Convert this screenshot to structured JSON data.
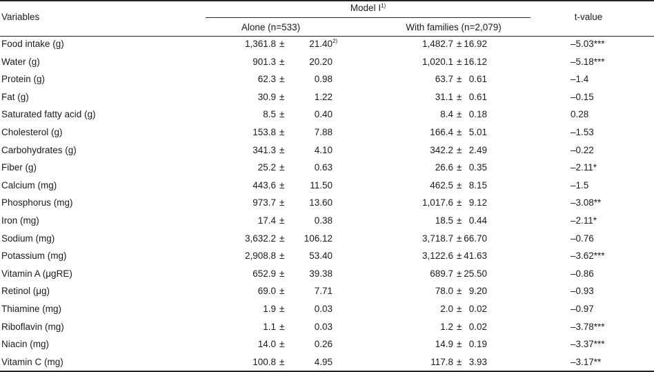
{
  "header": {
    "variables": "Variables",
    "model": "Model I",
    "model_note": "1)",
    "alone": "Alone (n=533)",
    "with_families": "With families (n=2,079)",
    "t_value": "t-value",
    "pm": "±",
    "se_note": "2)"
  },
  "rows": [
    {
      "variable": "Food intake (g)",
      "alone_mean": "1,361.8",
      "alone_se": "21.40",
      "with_mean": "1,482.7",
      "with_se": "16.92",
      "t": "–5.03***"
    },
    {
      "variable": "Water (g)",
      "alone_mean": "901.3",
      "alone_se": "20.20",
      "with_mean": "1,020.1",
      "with_se": "16.12",
      "t": "–5.18***"
    },
    {
      "variable": "Protein (g)",
      "alone_mean": "62.3",
      "alone_se": "0.98",
      "with_mean": "63.7",
      "with_se": "0.61",
      "t": "–1.4"
    },
    {
      "variable": "Fat (g)",
      "alone_mean": "30.9",
      "alone_se": "1.22",
      "with_mean": "31.1",
      "with_se": "0.61",
      "t": "–0.15"
    },
    {
      "variable": "Saturated fatty acid (g)",
      "alone_mean": "8.5",
      "alone_se": "0.40",
      "with_mean": "8.4",
      "with_se": "0.18",
      "t": "0.28"
    },
    {
      "variable": "Cholesterol (g)",
      "alone_mean": "153.8",
      "alone_se": "7.88",
      "with_mean": "166.4",
      "with_se": "5.01",
      "t": "–1.53"
    },
    {
      "variable": "Carbohydrates (g)",
      "alone_mean": "341.3",
      "alone_se": "4.10",
      "with_mean": "342.2",
      "with_se": "2.49",
      "t": "–0.22"
    },
    {
      "variable": "Fiber (g)",
      "alone_mean": "25.2",
      "alone_se": "0.63",
      "with_mean": "26.6",
      "with_se": "0.35",
      "t": "–2.11*"
    },
    {
      "variable": "Calcium (mg)",
      "alone_mean": "443.6",
      "alone_se": "11.50",
      "with_mean": "462.5",
      "with_se": "8.15",
      "t": "–1.5"
    },
    {
      "variable": "Phosphorus (mg)",
      "alone_mean": "973.7",
      "alone_se": "13.60",
      "with_mean": "1,017.6",
      "with_se": "9.12",
      "t": "–3.08**"
    },
    {
      "variable": "Iron (mg)",
      "alone_mean": "17.4",
      "alone_se": "0.38",
      "with_mean": "18.5",
      "with_se": "0.44",
      "t": "–2.11*"
    },
    {
      "variable": "Sodium (mg)",
      "alone_mean": "3,632.2",
      "alone_se": "106.12",
      "with_mean": "3,718.7",
      "with_se": "66.70",
      "t": "–0.76"
    },
    {
      "variable": "Potassium (mg)",
      "alone_mean": "2,908.8",
      "alone_se": "53.40",
      "with_mean": "3,122.6",
      "with_se": "41.63",
      "t": "–3.62***"
    },
    {
      "variable": "Vitamin A (μgRE)",
      "alone_mean": "652.9",
      "alone_se": "39.38",
      "with_mean": "689.7",
      "with_se": "25.50",
      "t": "–0.86"
    },
    {
      "variable": "Retinol (μg)",
      "alone_mean": "69.0",
      "alone_se": "7.71",
      "with_mean": "78.0",
      "with_se": "9.20",
      "t": "–0.93"
    },
    {
      "variable": "Thiamine (mg)",
      "alone_mean": "1.9",
      "alone_se": "0.03",
      "with_mean": "2.0",
      "with_se": "0.02",
      "t": "–0.97"
    },
    {
      "variable": "Riboflavin (mg)",
      "alone_mean": "1.1",
      "alone_se": "0.03",
      "with_mean": "1.2",
      "with_se": "0.02",
      "t": "–3.78***"
    },
    {
      "variable": "Niacin (mg)",
      "alone_mean": "14.0",
      "alone_se": "0.26",
      "with_mean": "14.9",
      "with_se": "0.19",
      "t": "–3.37***"
    },
    {
      "variable": "Vitamin C (mg)",
      "alone_mean": "100.8",
      "alone_se": "4.95",
      "with_mean": "117.8",
      "with_se": "3.93",
      "t": "–3.17**"
    }
  ]
}
